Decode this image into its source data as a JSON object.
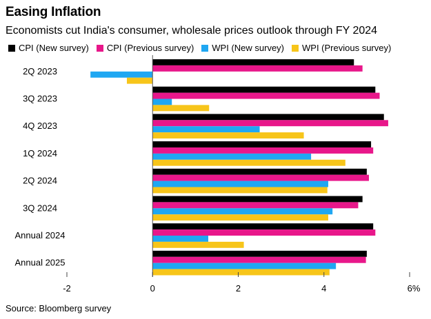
{
  "title": "Easing Inflation",
  "subtitle": "Economists cut India's consumer, wholesale prices outlook through FY 2024",
  "source": "Source: Bloomberg survey",
  "chart_data": {
    "type": "bar",
    "orientation": "horizontal",
    "categories": [
      "2Q 2023",
      "3Q 2023",
      "4Q 2023",
      "1Q 2024",
      "2Q 2024",
      "3Q 2024",
      "Annual 2024",
      "Annual 2025"
    ],
    "series": [
      {
        "name": "CPI (New survey)",
        "color": "#000000",
        "values": [
          4.7,
          5.2,
          5.4,
          5.1,
          5.0,
          4.9,
          5.15,
          5.0
        ]
      },
      {
        "name": "CPI (Previous survey)",
        "color": "#e8178a",
        "values": [
          4.9,
          5.3,
          5.5,
          5.15,
          5.05,
          4.8,
          5.2,
          4.98
        ]
      },
      {
        "name": "WPI (New survey)",
        "color": "#1fa7f2",
        "values": [
          -1.45,
          0.45,
          2.5,
          3.7,
          4.1,
          4.2,
          1.3,
          4.28
        ]
      },
      {
        "name": "WPI (Previous survey)",
        "color": "#f7c51a",
        "values": [
          -0.6,
          1.32,
          3.53,
          4.5,
          4.08,
          4.1,
          2.13,
          4.13
        ]
      }
    ],
    "xlim": [
      -2,
      6
    ],
    "x_ticks": [
      "-2",
      "0",
      "2",
      "4",
      "6%"
    ],
    "x_tick_values": [
      -2,
      0,
      2,
      4,
      6
    ],
    "grid": false,
    "legend_position": "top"
  }
}
